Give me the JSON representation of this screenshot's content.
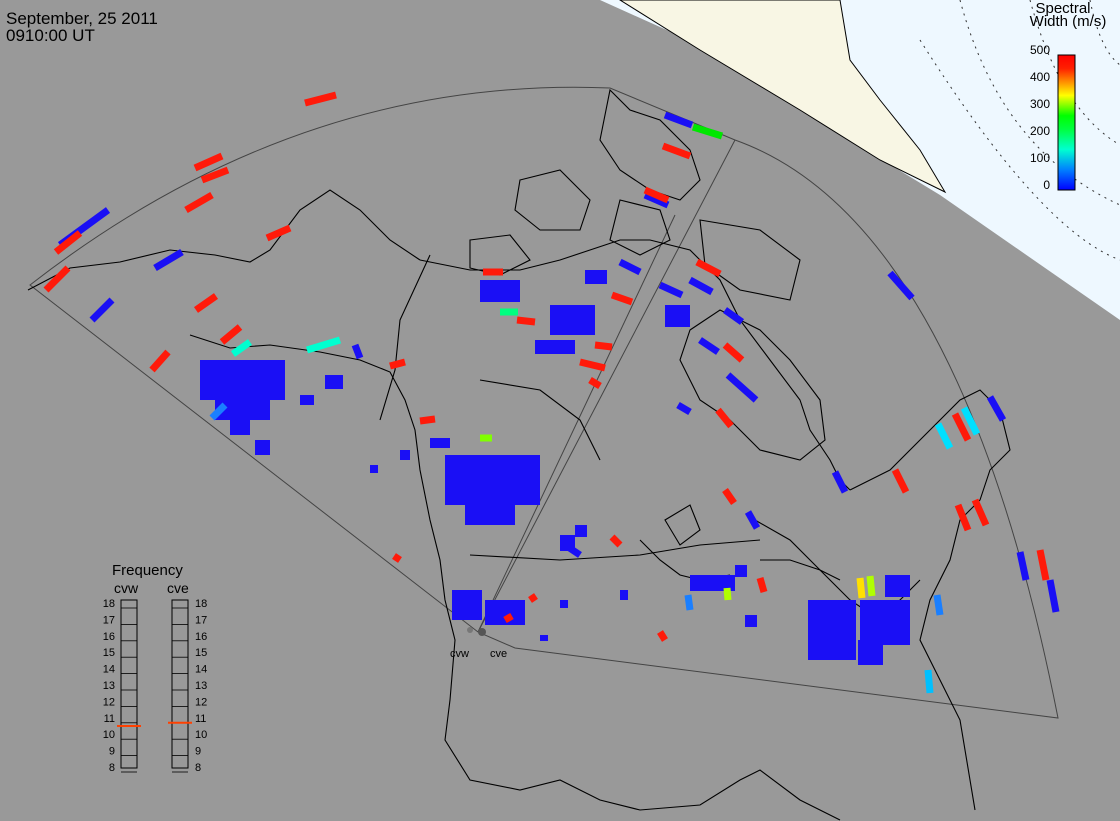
{
  "header": {
    "date": "September, 25 2011",
    "time": "0910:00 UT"
  },
  "colorbar": {
    "title_line1": "Spectral",
    "title_line2": "Width (m/s)",
    "ticks": [
      "500",
      "400",
      "300",
      "200",
      "100",
      "0"
    ],
    "colors": [
      "#0000ff",
      "#0080ff",
      "#00ffff",
      "#00ff80",
      "#00ff00",
      "#80ff00",
      "#ffff00",
      "#ffc000",
      "#ff8000",
      "#ff4000",
      "#ff0000"
    ]
  },
  "radars": {
    "west": "cvw",
    "east": "cve"
  },
  "frequency_panel": {
    "title": "Frequency",
    "col_west": "cvw",
    "col_east": "cve",
    "scale": [
      "18",
      "17",
      "16",
      "15",
      "14",
      "13",
      "12",
      "11",
      "10",
      "9",
      "8"
    ],
    "cvw_value": 10.5,
    "cve_value": 10.7
  },
  "colors": {
    "night": "#999999",
    "day": "#eef8ff",
    "land_ice": "#f8f6e4",
    "low_width": "#1a0ff5",
    "high_width": "#ff1a0a"
  }
}
